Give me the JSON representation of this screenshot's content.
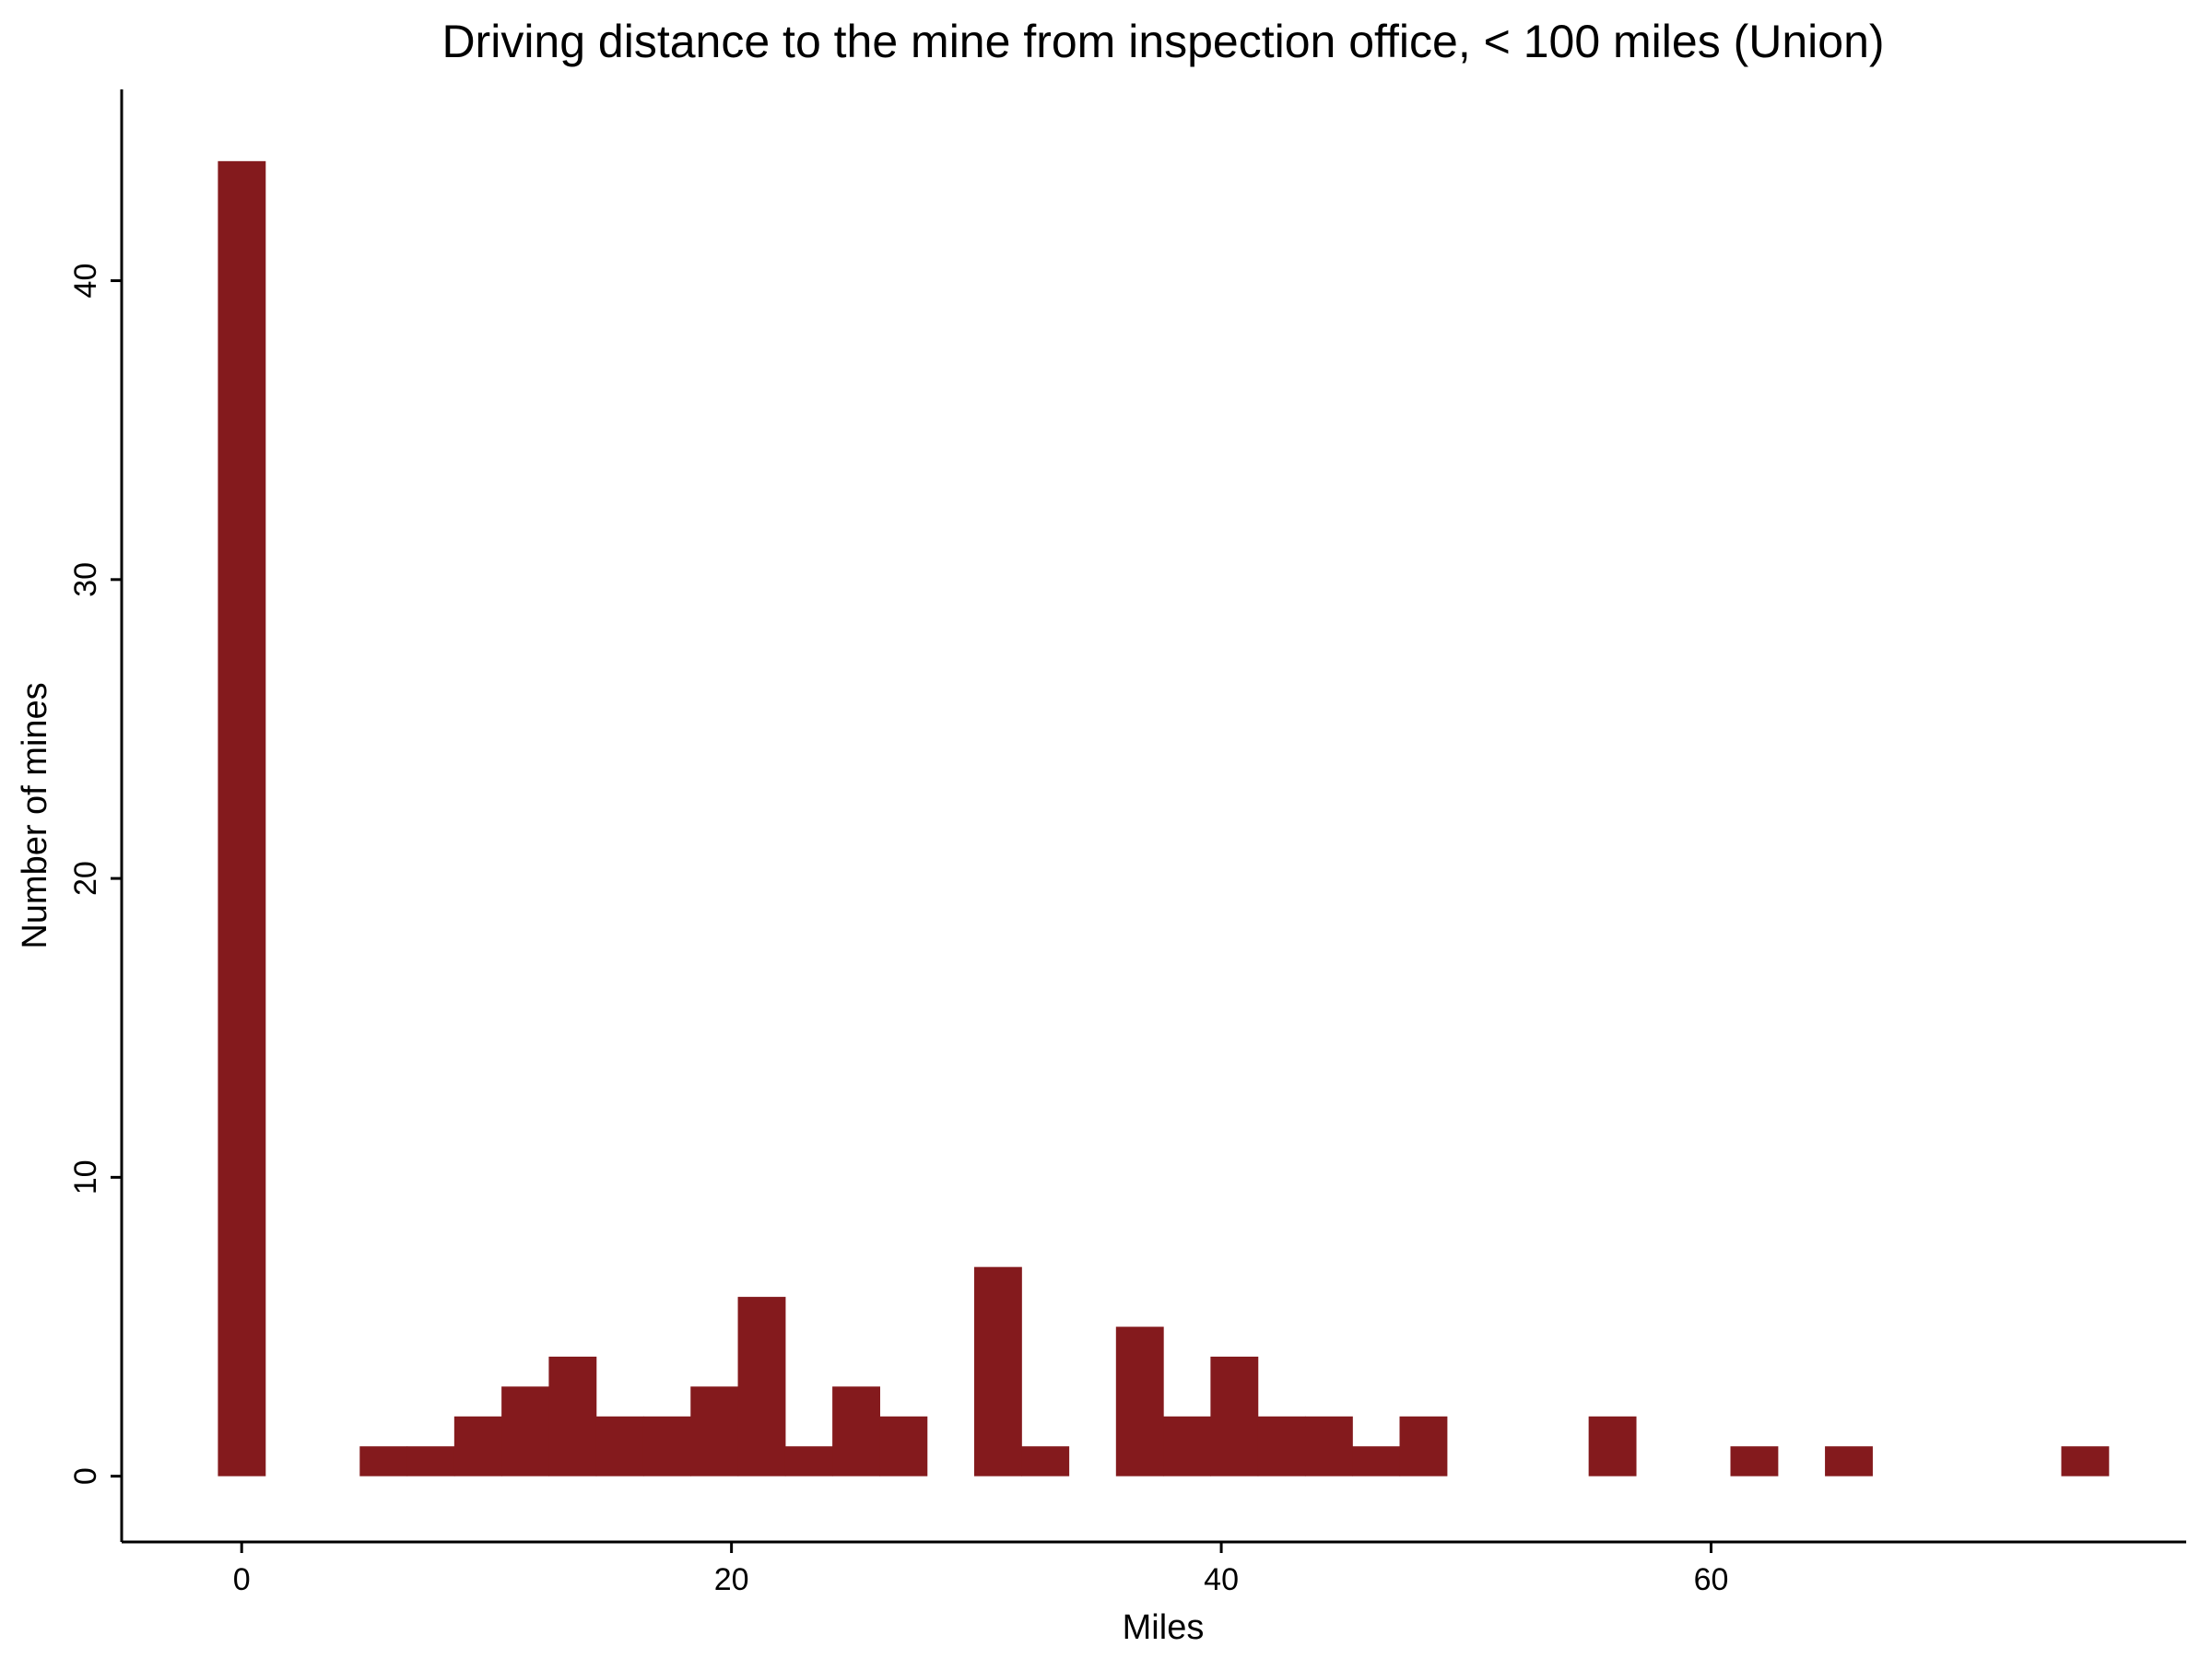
{
  "chart_data": {
    "type": "bar",
    "title": "Driving distance to the mine from inspection office, < 100 miles (Union)",
    "xlabel": "Miles",
    "ylabel": "Number of mines",
    "bin_width": 1.93,
    "bins": [
      {
        "start": -0.97,
        "count": 44
      },
      {
        "start": 4.82,
        "count": 1
      },
      {
        "start": 6.75,
        "count": 1
      },
      {
        "start": 8.68,
        "count": 2
      },
      {
        "start": 10.61,
        "count": 3
      },
      {
        "start": 12.54,
        "count": 4
      },
      {
        "start": 14.47,
        "count": 2
      },
      {
        "start": 16.4,
        "count": 2
      },
      {
        "start": 18.33,
        "count": 3
      },
      {
        "start": 20.26,
        "count": 6
      },
      {
        "start": 22.19,
        "count": 1
      },
      {
        "start": 24.12,
        "count": 3
      },
      {
        "start": 26.05,
        "count": 2
      },
      {
        "start": 29.91,
        "count": 7
      },
      {
        "start": 31.84,
        "count": 1
      },
      {
        "start": 35.7,
        "count": 5
      },
      {
        "start": 37.63,
        "count": 2
      },
      {
        "start": 39.56,
        "count": 4
      },
      {
        "start": 41.49,
        "count": 2
      },
      {
        "start": 43.42,
        "count": 2
      },
      {
        "start": 45.35,
        "count": 1
      },
      {
        "start": 47.28,
        "count": 2
      },
      {
        "start": 55.0,
        "count": 2
      },
      {
        "start": 60.79,
        "count": 1
      },
      {
        "start": 64.65,
        "count": 1
      },
      {
        "start": 74.3,
        "count": 1
      }
    ],
    "xlim": [
      -4.9,
      79.4
    ],
    "ylim": [
      -2.2,
      46.4
    ],
    "x_ticks": [
      0,
      20,
      40,
      60
    ],
    "y_ticks": [
      0,
      10,
      20,
      30,
      40
    ],
    "x_tick_labels": [
      "0",
      "20",
      "40",
      "60"
    ],
    "y_tick_labels": [
      "0",
      "10",
      "20",
      "30",
      "40"
    ],
    "bar_color": "#841a1d",
    "grid": false,
    "legend": "none"
  }
}
